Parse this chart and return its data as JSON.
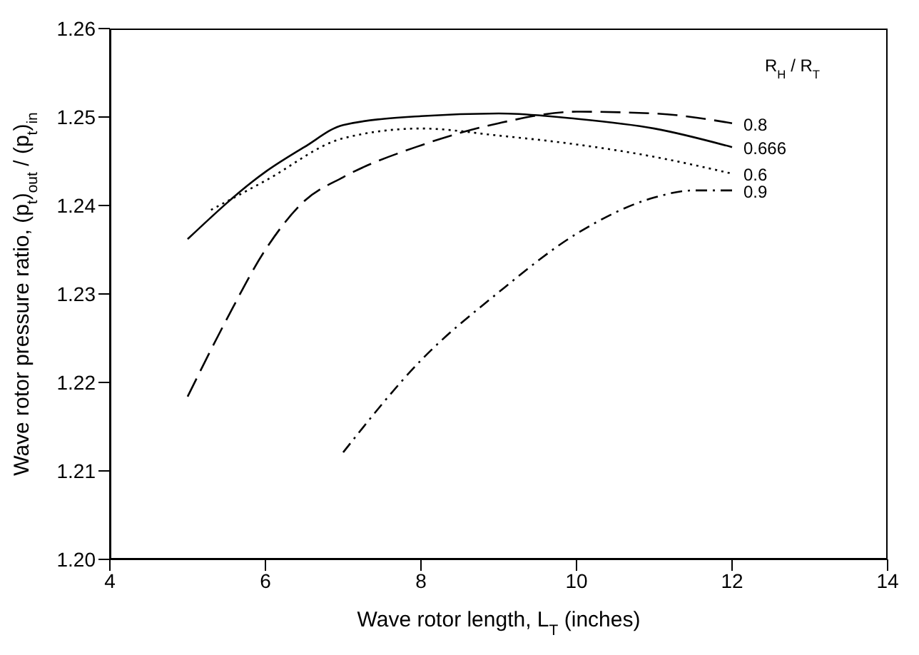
{
  "chart_data": {
    "type": "line",
    "xlabel": "Wave rotor length, L$_{T}$ (inches)",
    "ylabel": "Wave rotor pressure ratio, (p$_{t}$)$_{out}$ / (p$_{t}$)$_{in}$",
    "legend_title": "R$_{H}$ / R$_{T}$",
    "marker": "none",
    "xlim": [
      4,
      14
    ],
    "xticks": [
      4,
      6,
      8,
      10,
      12,
      14
    ],
    "ylim": [
      1.2,
      1.26
    ],
    "yticks": [
      {
        "value": 1.2,
        "label": "1.20"
      },
      {
        "value": 1.21,
        "label": "1.21"
      },
      {
        "value": 1.22,
        "label": "1.22"
      },
      {
        "value": 1.23,
        "label": "1.23"
      },
      {
        "value": 1.24,
        "label": "1.24"
      },
      {
        "value": 1.25,
        "label": "1.25"
      },
      {
        "value": 1.26,
        "label": "1.26"
      }
    ],
    "series": [
      {
        "name": "0.8",
        "color": "#000000",
        "line_style": "dashed",
        "x": [
          5,
          5.5,
          6,
          6.5,
          7,
          8,
          9,
          10,
          11,
          12
        ],
        "values": [
          1.2184,
          1.2271,
          1.235,
          1.2405,
          1.2432,
          1.2468,
          1.2493,
          1.2506,
          1.2504,
          1.2493
        ]
      },
      {
        "name": "0.666",
        "color": "#000000",
        "line_style": "solid",
        "x": [
          5,
          6,
          6.5,
          7,
          8,
          9,
          10,
          11,
          12
        ],
        "values": [
          1.2362,
          1.2438,
          1.2466,
          1.2491,
          1.2501,
          1.2504,
          1.2498,
          1.2487,
          1.2466
        ]
      },
      {
        "name": "0.6",
        "color": "#000000",
        "line_style": "dotted",
        "x": [
          5.3,
          6,
          7,
          8,
          9,
          10,
          11,
          12
        ],
        "values": [
          1.2395,
          1.2428,
          1.2476,
          1.2487,
          1.2479,
          1.2469,
          1.2455,
          1.2436
        ]
      },
      {
        "name": "0.9",
        "color": "#000000",
        "line_style": "dashdot",
        "x": [
          7,
          8,
          9,
          10,
          11,
          11.5,
          12
        ],
        "values": [
          1.2121,
          1.2225,
          1.2302,
          1.2368,
          1.2409,
          1.2417,
          1.2417
        ]
      }
    ]
  }
}
